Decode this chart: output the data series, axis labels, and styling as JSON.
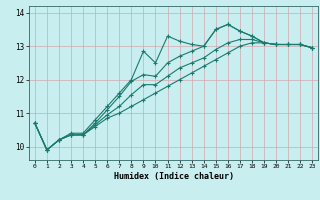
{
  "title": "",
  "xlabel": "Humidex (Indice chaleur)",
  "bg_color": "#c8eef0",
  "grid_color": "#d4a8b0",
  "line_color": "#1a7a6e",
  "xlim": [
    -0.5,
    23.5
  ],
  "ylim": [
    9.6,
    14.2
  ],
  "yticks": [
    10,
    11,
    12,
    13,
    14
  ],
  "xticks": [
    0,
    1,
    2,
    3,
    4,
    5,
    6,
    7,
    8,
    9,
    10,
    11,
    12,
    13,
    14,
    15,
    16,
    17,
    18,
    19,
    20,
    21,
    22,
    23
  ],
  "series": [
    [
      10.7,
      9.9,
      10.2,
      10.4,
      10.4,
      10.8,
      11.2,
      11.6,
      12.0,
      12.85,
      12.5,
      13.3,
      13.15,
      13.05,
      13.0,
      13.5,
      13.65,
      13.45,
      13.3,
      13.1,
      13.05,
      13.05,
      13.05,
      12.95
    ],
    [
      10.7,
      9.9,
      10.2,
      10.35,
      10.35,
      10.7,
      11.1,
      11.5,
      11.95,
      12.15,
      12.1,
      12.5,
      12.7,
      12.85,
      13.0,
      13.5,
      13.65,
      13.45,
      13.3,
      13.1,
      13.05,
      13.05,
      13.05,
      12.95
    ],
    [
      10.7,
      9.9,
      10.2,
      10.35,
      10.35,
      10.65,
      10.95,
      11.2,
      11.55,
      11.85,
      11.85,
      12.1,
      12.35,
      12.5,
      12.65,
      12.9,
      13.1,
      13.2,
      13.2,
      13.1,
      13.05,
      13.05,
      13.05,
      12.95
    ],
    [
      10.7,
      9.9,
      10.2,
      10.35,
      10.35,
      10.6,
      10.85,
      11.0,
      11.2,
      11.4,
      11.6,
      11.8,
      12.0,
      12.2,
      12.4,
      12.6,
      12.8,
      13.0,
      13.1,
      13.1,
      13.05,
      13.05,
      13.05,
      12.95
    ]
  ]
}
